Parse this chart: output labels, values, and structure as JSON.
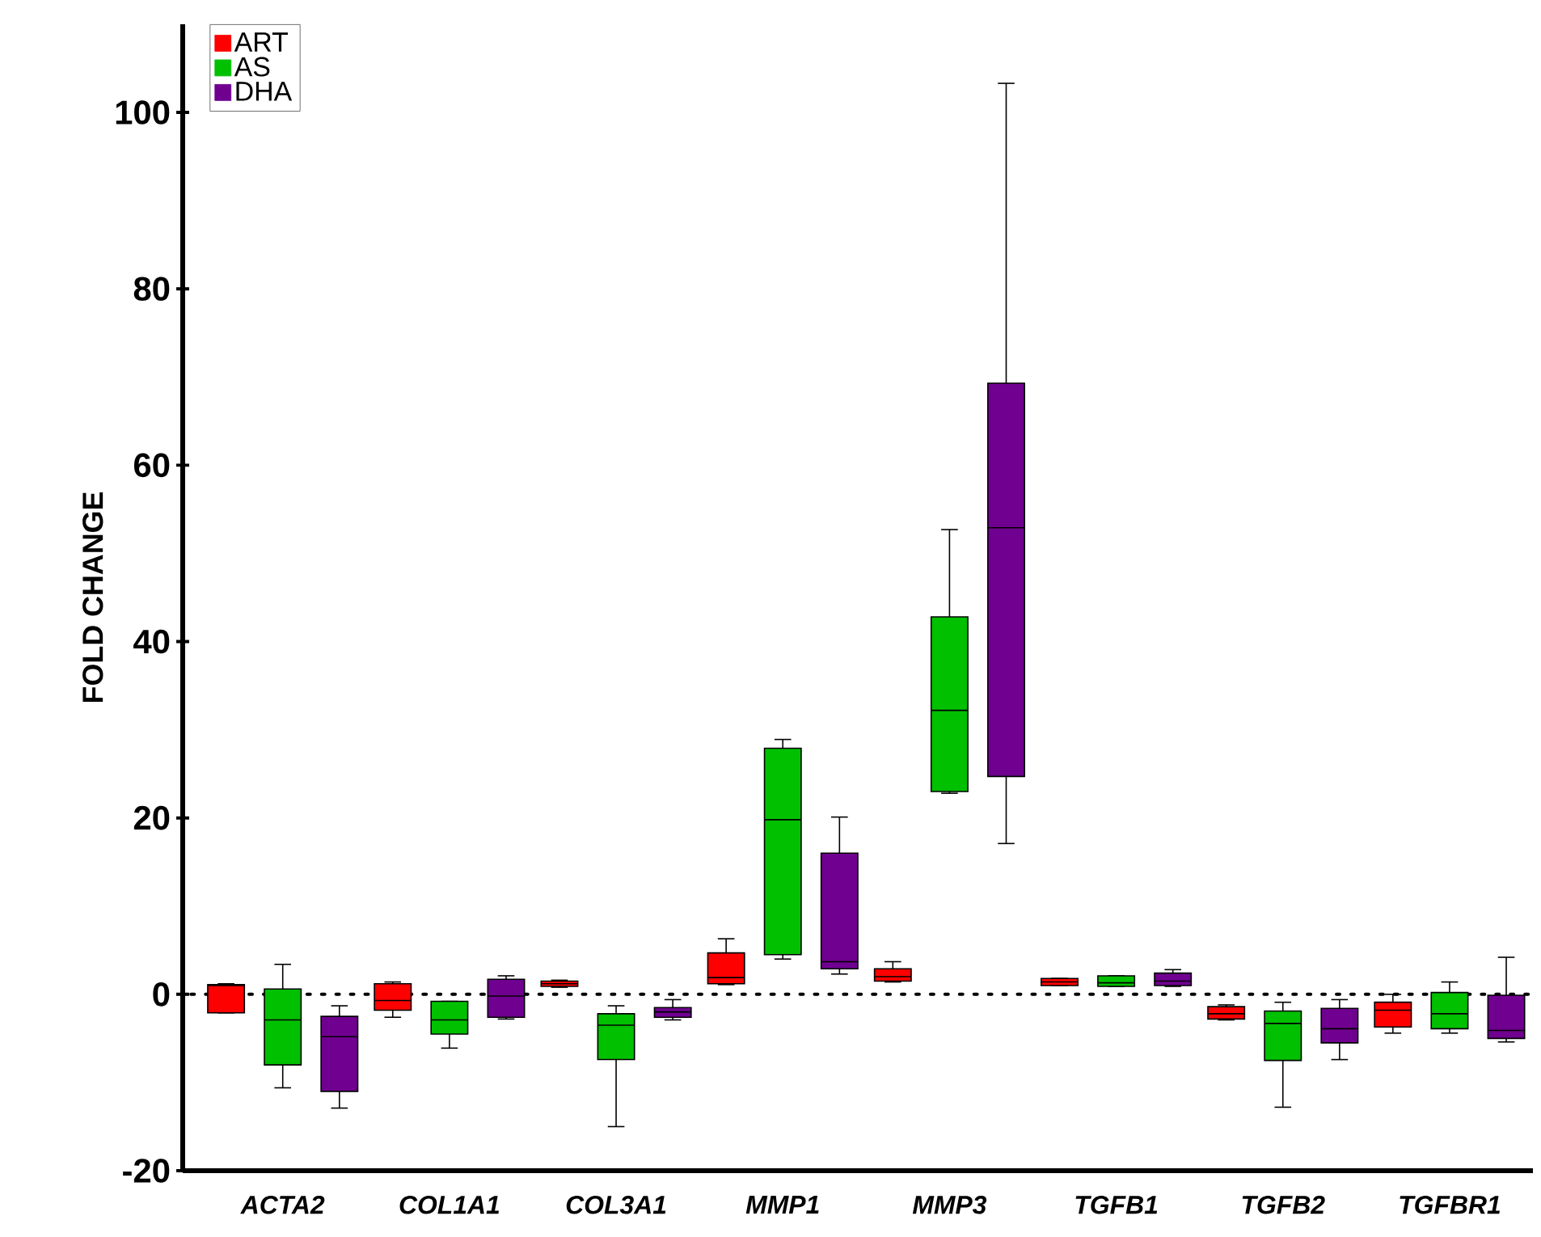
{
  "chart_data": {
    "type": "box",
    "ylabel": "FOLD CHANGE",
    "categories": [
      "ACTA2",
      "COL1A1",
      "COL3A1",
      "MMP1",
      "MMP3",
      "TGFB1",
      "TGFB2",
      "TGFBR1"
    ],
    "ylim": [
      -20,
      110
    ],
    "yticks": [
      -20,
      0,
      20,
      40,
      60,
      80,
      100
    ],
    "legend": "top left",
    "ref_lines": [
      {
        "axis": "y",
        "value": 0,
        "line_style": "dotted"
      }
    ],
    "series": [
      {
        "name": "ART",
        "color": "#ff0000",
        "boxes": [
          {
            "low": -2.1,
            "q1": -2.1,
            "median": 1.0,
            "q3": 1.1,
            "high": 1.2
          },
          {
            "low": -2.6,
            "q1": -1.8,
            "median": -0.7,
            "q3": 1.2,
            "high": 1.4
          },
          {
            "low": 0.8,
            "q1": 0.9,
            "median": 1.2,
            "q3": 1.5,
            "high": 1.6
          },
          {
            "low": 1.1,
            "q1": 1.2,
            "median": 1.9,
            "q3": 4.7,
            "high": 6.3
          },
          {
            "low": 1.4,
            "q1": 1.5,
            "median": 2.0,
            "q3": 2.9,
            "high": 3.7
          },
          {
            "low": 1.0,
            "q1": 1.0,
            "median": 1.4,
            "q3": 1.8,
            "high": 1.8
          },
          {
            "low": -2.9,
            "q1": -2.8,
            "median": -2.2,
            "q3": -1.4,
            "high": -1.2
          },
          {
            "low": -4.4,
            "q1": -3.7,
            "median": -1.8,
            "q3": -0.9,
            "high": 0.0
          }
        ]
      },
      {
        "name": "AS",
        "color": "#00c000",
        "boxes": [
          {
            "low": -10.6,
            "q1": -8.0,
            "median": -2.9,
            "q3": 0.6,
            "high": 3.4
          },
          {
            "low": -6.1,
            "q1": -4.5,
            "median": -2.9,
            "q3": -0.8,
            "high": -0.8
          },
          {
            "low": -15.0,
            "q1": -7.4,
            "median": -3.5,
            "q3": -2.2,
            "high": -1.3
          },
          {
            "low": 4.0,
            "q1": 4.5,
            "median": 19.8,
            "q3": 27.9,
            "high": 28.9
          },
          {
            "low": 22.8,
            "q1": 23.0,
            "median": 32.2,
            "q3": 42.8,
            "high": 52.7
          },
          {
            "low": 0.9,
            "q1": 0.9,
            "median": 1.3,
            "q3": 2.1,
            "high": 2.1
          },
          {
            "low": -12.8,
            "q1": -7.5,
            "median": -3.3,
            "q3": -1.9,
            "high": -0.9
          },
          {
            "low": -4.4,
            "q1": -3.9,
            "median": -2.2,
            "q3": 0.2,
            "high": 1.4
          }
        ]
      },
      {
        "name": "DHA",
        "color": "#700090",
        "boxes": [
          {
            "low": -12.9,
            "q1": -11.0,
            "median": -4.8,
            "q3": -2.5,
            "high": -1.3
          },
          {
            "low": -2.8,
            "q1": -2.6,
            "median": -0.2,
            "q3": 1.7,
            "high": 2.1
          },
          {
            "low": -2.9,
            "q1": -2.6,
            "median": -2.0,
            "q3": -1.5,
            "high": -0.6
          },
          {
            "low": 2.3,
            "q1": 2.9,
            "median": 3.7,
            "q3": 16.0,
            "high": 20.1
          },
          {
            "low": 17.1,
            "q1": 24.7,
            "median": 52.9,
            "q3": 69.3,
            "high": 103.3
          },
          {
            "low": 0.9,
            "q1": 1.0,
            "median": 1.5,
            "q3": 2.4,
            "high": 2.8
          },
          {
            "low": -7.4,
            "q1": -5.5,
            "median": -3.9,
            "q3": -1.6,
            "high": -0.6
          },
          {
            "low": -5.4,
            "q1": -5.0,
            "median": -4.1,
            "q3": -0.1,
            "high": 4.2
          }
        ]
      }
    ]
  }
}
